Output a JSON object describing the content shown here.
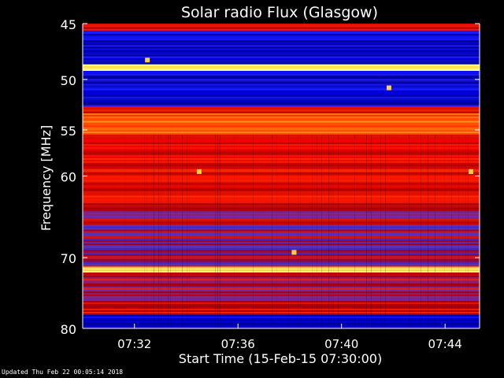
{
  "title": "Solar radio Flux (Glasgow)",
  "footer": "Updated Thu Feb 22 00:05:14 2018",
  "colors": {
    "background": "#000000",
    "axis": "#ffffff",
    "text": "#ffffff"
  },
  "chart_data": {
    "type": "heatmap",
    "title": "Solar radio Flux (Glasgow)",
    "xlabel": "Start Time (15-Feb-15 07:30:00)",
    "ylabel": "Frequency [MHz]",
    "x_unit": "time (HH:MM)",
    "y_unit": "MHz",
    "xlim": [
      "07:30:00",
      "07:45:20"
    ],
    "ylim": [
      80,
      45
    ],
    "y_scale": "log",
    "x_ticks": [
      "07:32",
      "07:36",
      "07:40",
      "07:44"
    ],
    "y_ticks": [
      45,
      50,
      55,
      60,
      70,
      80
    ],
    "colormap": [
      "#000040",
      "#0000ff",
      "#5a36c0",
      "#c00000",
      "#ff2000",
      "#ff8000",
      "#ffff60"
    ],
    "frequency_bands": [
      {
        "from": 45.0,
        "to": 45.6,
        "level": "high"
      },
      {
        "from": 45.6,
        "to": 48.6,
        "level": "low"
      },
      {
        "from": 48.6,
        "to": 49.2,
        "level": "peak"
      },
      {
        "from": 49.2,
        "to": 52.6,
        "level": "low"
      },
      {
        "from": 52.6,
        "to": 53.3,
        "level": "high"
      },
      {
        "from": 53.3,
        "to": 55.5,
        "level": "very-high"
      },
      {
        "from": 55.5,
        "to": 63.0,
        "level": "high"
      },
      {
        "from": 63.0,
        "to": 66.0,
        "level": "medium"
      },
      {
        "from": 66.0,
        "to": 71.2,
        "level": "mixed"
      },
      {
        "from": 71.2,
        "to": 72.0,
        "level": "peak"
      },
      {
        "from": 72.0,
        "to": 78.0,
        "level": "medium"
      },
      {
        "from": 78.0,
        "to": 80.0,
        "level": "low"
      }
    ],
    "hotspots": [
      {
        "time": "07:34:30",
        "freq": 59.5
      },
      {
        "time": "07:45:00",
        "freq": 59.5
      },
      {
        "time": "07:38:10",
        "freq": 69.3
      },
      {
        "time": "07:32:30",
        "freq": 48.2
      },
      {
        "time": "07:41:50",
        "freq": 50.8
      }
    ]
  }
}
